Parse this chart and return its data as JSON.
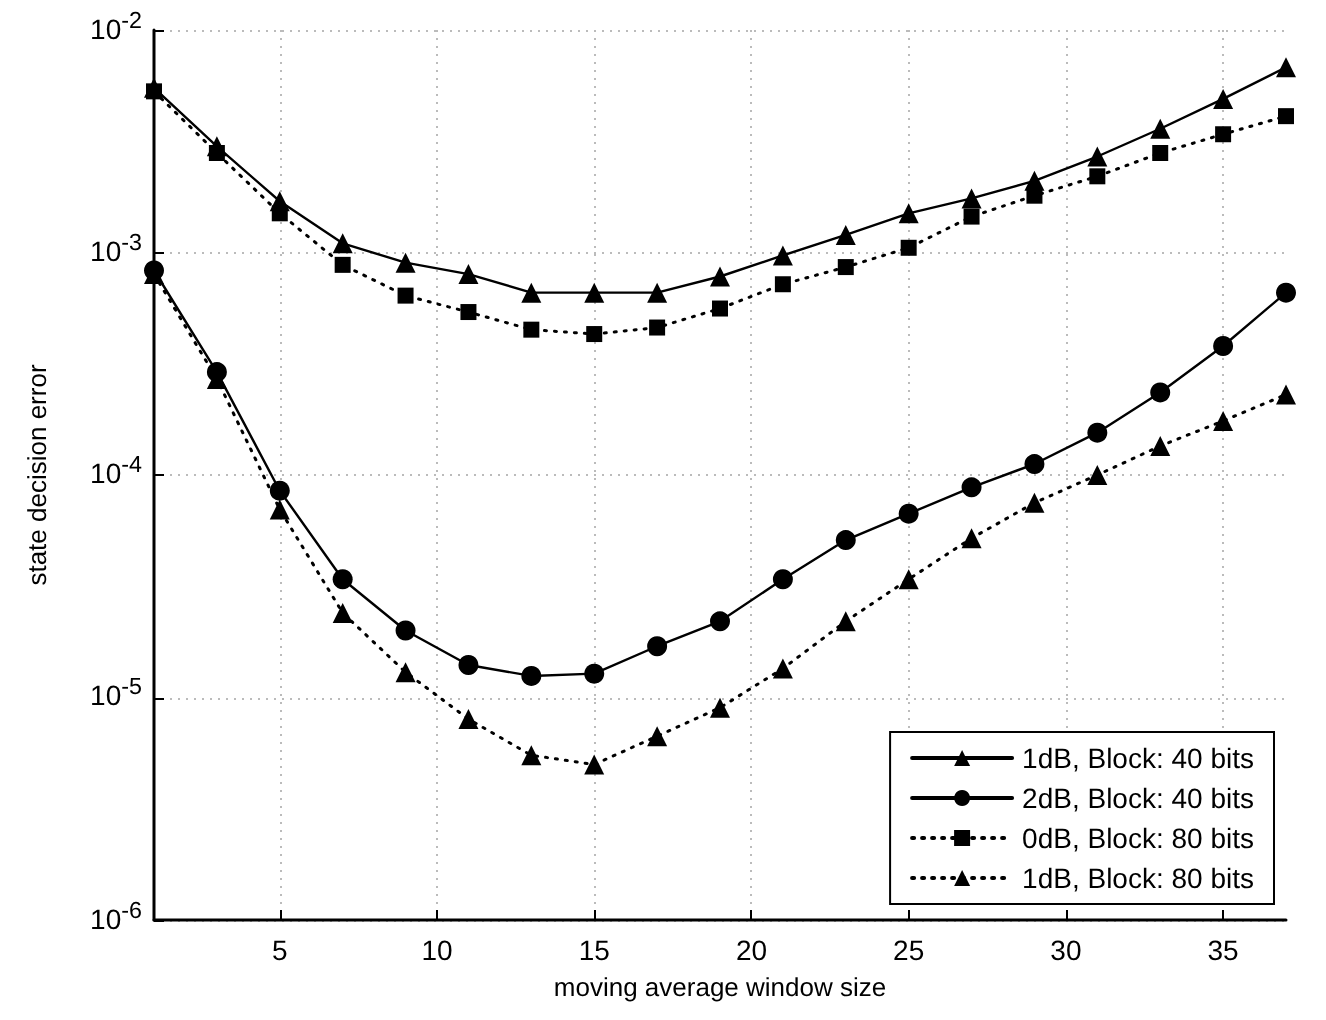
{
  "chart_data": {
    "type": "line",
    "xlabel": "moving average window size",
    "ylabel": "state decision error",
    "x": [
      1,
      3,
      5,
      7,
      9,
      11,
      13,
      15,
      17,
      19,
      21,
      23,
      25,
      27,
      29,
      31,
      33,
      35,
      37
    ],
    "series": [
      {
        "name": "1dB, Block: 40 bits",
        "color": "#000000",
        "marker": "triangle",
        "line_style": "solid",
        "values": [
          0.0055,
          0.003,
          0.0017,
          0.0011,
          0.0009,
          0.0008,
          0.00066,
          0.00066,
          0.00066,
          0.00078,
          0.00097,
          0.0012,
          0.0015,
          0.00175,
          0.0021,
          0.0027,
          0.0036,
          0.0049,
          0.0068
        ]
      },
      {
        "name": "2dB, Block: 40 bits",
        "color": "#000000",
        "marker": "circle",
        "line_style": "solid",
        "values": [
          0.00083,
          0.00029,
          8.5e-05,
          3.4e-05,
          2e-05,
          1.4e-05,
          1.25e-05,
          1.28e-05,
          1.7e-05,
          2.2e-05,
          3.4e-05,
          5.1e-05,
          6.7e-05,
          8.8e-05,
          0.000112,
          0.000155,
          0.000235,
          0.00038,
          0.00066
        ]
      },
      {
        "name": "0dB, Block: 80 bits",
        "color": "#000000",
        "marker": "square",
        "line_style": "dotted",
        "values": [
          0.0053,
          0.0028,
          0.0015,
          0.00088,
          0.00064,
          0.00054,
          0.00045,
          0.00043,
          0.00046,
          0.00056,
          0.00072,
          0.00086,
          0.00105,
          0.00145,
          0.0018,
          0.0022,
          0.0028,
          0.0034,
          0.0041
        ]
      },
      {
        "name": "1dB, Block: 80 bits",
        "color": "#000000",
        "marker": "triangle",
        "line_style": "dotted",
        "values": [
          0.0008,
          0.00027,
          7e-05,
          2.4e-05,
          1.3e-05,
          8e-06,
          5.5e-06,
          5e-06,
          6.7e-06,
          9e-06,
          1.35e-05,
          2.2e-05,
          3.4e-05,
          5.2e-05,
          7.5e-05,
          0.0001,
          0.000135,
          0.000175,
          0.00023
        ]
      }
    ],
    "xlim": [
      1,
      37
    ],
    "xticks": [
      5,
      10,
      15,
      20,
      25,
      30,
      35
    ],
    "ylim": [
      1e-06,
      0.01
    ],
    "yticks": [
      {
        "value": 1e-06,
        "label": "10$^{-6}$"
      },
      {
        "value": 1e-05,
        "label": "10$^{-5}$"
      },
      {
        "value": 0.0001,
        "label": "10$^{-4}$"
      },
      {
        "value": 0.001,
        "label": "10$^{-3}$"
      },
      {
        "value": 0.01,
        "label": "10$^{-2}$"
      }
    ],
    "log": "y",
    "grid": true,
    "legend": "bottom right"
  }
}
